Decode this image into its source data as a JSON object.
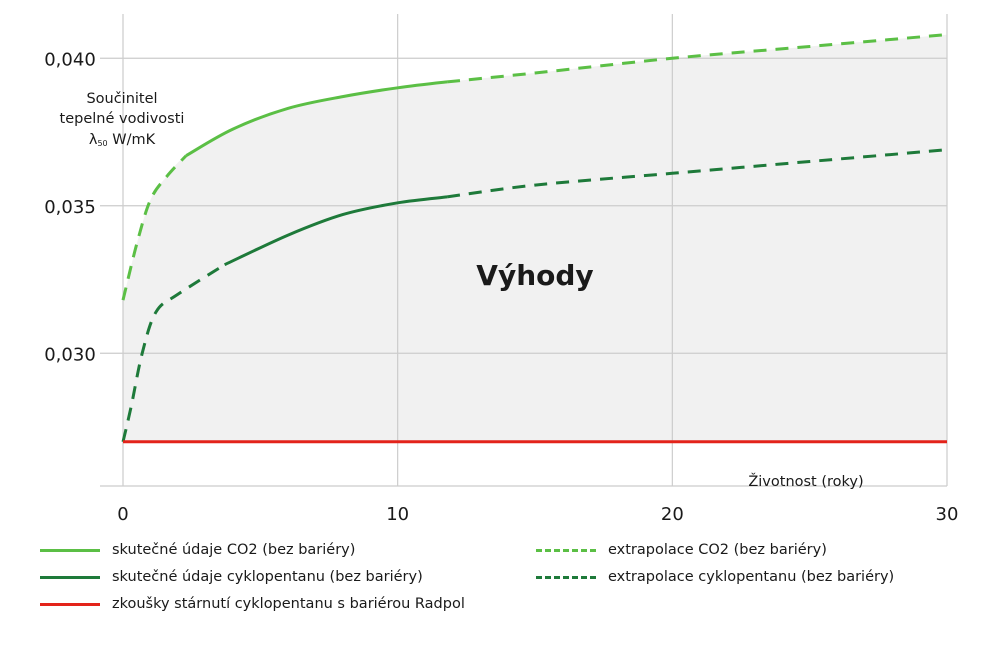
{
  "chart_data": {
    "type": "line",
    "ylabel": [
      "Součinitel",
      "tepelné vodivosti",
      "λ",
      "50",
      " W/mK"
    ],
    "xlabel": "Životnost (roky)",
    "xlim": [
      0,
      30
    ],
    "ylim": [
      0.0255,
      0.0415
    ],
    "x_ticks": [
      0,
      10,
      20,
      30
    ],
    "x_tick_labels": [
      "0",
      "10",
      "20",
      "30"
    ],
    "y_ticks": [
      0.03,
      0.035,
      0.04
    ],
    "y_tick_labels": [
      "0,030",
      "0,035",
      "0,040"
    ],
    "grid": true,
    "annotation": "Výhody",
    "colors": {
      "co2": "#5bbf45",
      "cyclo": "#1e7a3a",
      "radpol": "#e3231a",
      "fill": "#f1f1f1",
      "grid": "#cccccc"
    },
    "series": [
      {
        "name": "skutečné údaje CO2 (bez bariéry)",
        "color": "#5bbf45",
        "style": "solid",
        "points": [
          [
            2.3,
            0.0367
          ],
          [
            4,
            0.0376
          ],
          [
            6,
            0.0383
          ],
          [
            8,
            0.0387
          ],
          [
            10,
            0.039
          ],
          [
            11.8,
            0.0392
          ]
        ]
      },
      {
        "name": "extrapolace CO2 (bez bariéry)",
        "color": "#5bbf45",
        "style": "dashed",
        "points": [
          [
            0,
            0.0318
          ],
          [
            0.5,
            0.0337
          ],
          [
            1,
            0.0352
          ],
          [
            1.6,
            0.036
          ],
          [
            2.3,
            0.0367
          ]
        ],
        "points2": [
          [
            11.8,
            0.0392
          ],
          [
            15,
            0.0395
          ],
          [
            20,
            0.04
          ],
          [
            25,
            0.0404
          ],
          [
            30,
            0.0408
          ]
        ]
      },
      {
        "name": "skutečné údaje cyklopentanu (bez bariéry)",
        "color": "#1e7a3a",
        "style": "solid",
        "points": [
          [
            3.7,
            0.033
          ],
          [
            6,
            0.034
          ],
          [
            8,
            0.0347
          ],
          [
            10,
            0.0351
          ],
          [
            11.8,
            0.0353
          ]
        ]
      },
      {
        "name": "extrapolace cyklopentanu (bez bariéry)",
        "color": "#1e7a3a",
        "style": "dashed",
        "points": [
          [
            0,
            0.027
          ],
          [
            0.3,
            0.0282
          ],
          [
            0.7,
            0.03
          ],
          [
            1.2,
            0.0314
          ],
          [
            2,
            0.032
          ],
          [
            3.7,
            0.033
          ]
        ],
        "points2": [
          [
            11.8,
            0.0353
          ],
          [
            15,
            0.0357
          ],
          [
            20,
            0.0361
          ],
          [
            25,
            0.0365
          ],
          [
            30,
            0.0369
          ]
        ]
      },
      {
        "name": "zkoušky stárnutí cyklopentanu s bariérou Radpol",
        "color": "#e3231a",
        "style": "solid",
        "points": [
          [
            0,
            0.027
          ],
          [
            30,
            0.027
          ]
        ]
      }
    ],
    "legend_order": [
      0,
      2,
      4,
      1,
      3
    ],
    "legend_placement": "bottom"
  }
}
